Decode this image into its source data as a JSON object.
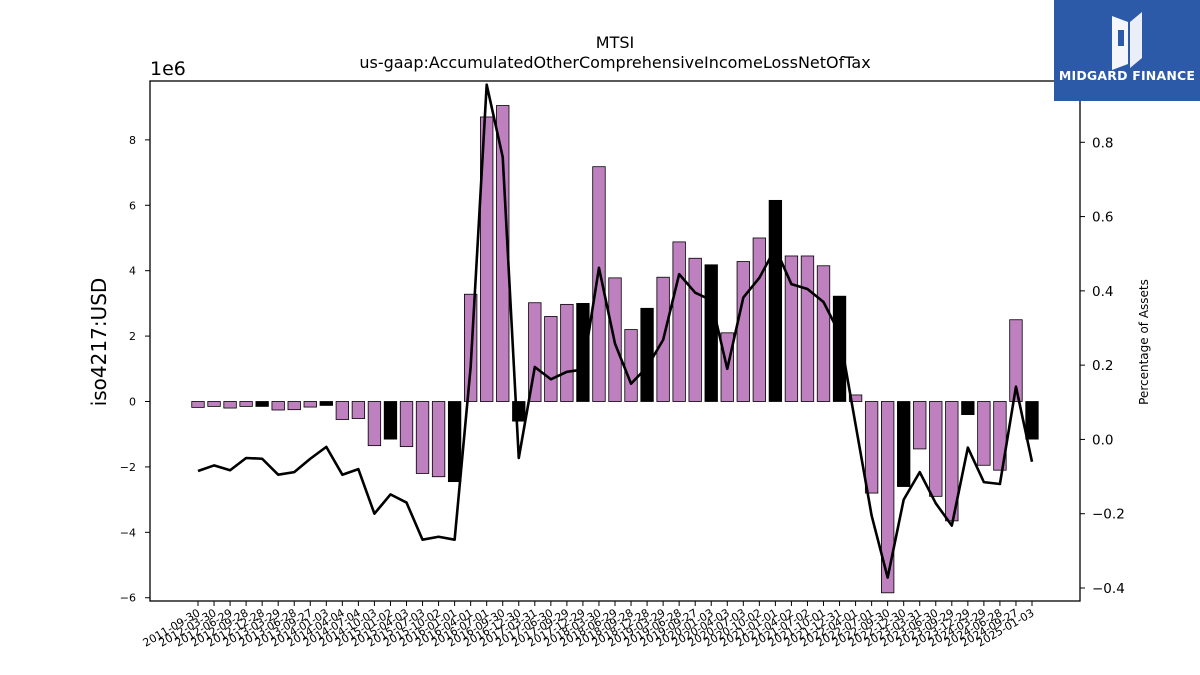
{
  "chart_data": {
    "type": "bar",
    "title": "MTSI",
    "subtitle": "us-gaap:AccumulatedOtherComprehensiveIncomeLossNetOfTax",
    "ylabel": "iso4217:USD",
    "y2label": "Percentage of Assets",
    "y_multiplier": "1e6",
    "ylim": [
      -6.1,
      9.8
    ],
    "y2lim": [
      -0.435,
      0.965
    ],
    "yticks": [
      -6,
      -4,
      -2,
      0,
      2,
      4,
      6,
      8
    ],
    "y2ticks": [
      -0.4,
      -0.2,
      0.0,
      0.2,
      0.4,
      0.6,
      0.8
    ],
    "y2ticklabels": [
      "−0.4",
      "−0.2",
      "0.0",
      "0.2",
      "0.4",
      "0.6",
      "0.8"
    ],
    "yticklabels": [
      "−6",
      "−4",
      "−2",
      "0",
      "2",
      "4",
      "6",
      "8"
    ],
    "legend": "none",
    "grid": false,
    "colors": {
      "bar": "#bf80bf",
      "bar_highlight": "#000000",
      "line": "#000000"
    },
    "x": [
      "2011-09-30",
      "2012-03-30",
      "2012-06-29",
      "2012-09-28",
      "2012-12-28",
      "2013-03-29",
      "2013-06-28",
      "2013-09-27",
      "2014-01-03",
      "2014-04-04",
      "2014-07-04",
      "2014-10-03",
      "2015-01-02",
      "2015-04-03",
      "2015-07-03",
      "2015-10-02",
      "2016-01-01",
      "2016-04-01",
      "2016-07-01",
      "2016-09-30",
      "2016-12-30",
      "2017-03-31",
      "2017-06-30",
      "2017-09-29",
      "2017-12-29",
      "2018-03-30",
      "2018-06-29",
      "2018-09-28",
      "2018-12-28",
      "2019-03-29",
      "2019-06-28",
      "2019-09-27",
      "2020-01-03",
      "2020-04-03",
      "2020-07-03",
      "2020-10-02",
      "2021-01-01",
      "2021-04-02",
      "2021-07-02",
      "2021-10-01",
      "2021-12-31",
      "2022-04-01",
      "2022-07-01",
      "2022-09-30",
      "2022-12-30",
      "2023-03-31",
      "2023-06-30",
      "2023-09-29",
      "2023-12-29",
      "2024-03-29",
      "2024-06-28",
      "2024-09-27",
      "2025-01-03"
    ],
    "values": [
      -0.18,
      -0.15,
      -0.2,
      -0.15,
      -0.15,
      -0.26,
      -0.25,
      -0.17,
      -0.12,
      -0.55,
      -0.52,
      -1.35,
      -1.15,
      -1.38,
      -2.2,
      -2.3,
      -2.45,
      3.28,
      8.7,
      9.05,
      -0.6,
      3.02,
      2.6,
      2.97,
      3.0,
      7.18,
      3.78,
      2.2,
      2.85,
      3.8,
      4.88,
      4.38,
      4.18,
      2.1,
      4.28,
      5.0,
      6.15,
      4.45,
      4.45,
      4.15,
      3.22,
      0.2,
      -2.8,
      -5.85,
      -2.6,
      -1.45,
      -2.9,
      -3.65,
      -0.4,
      -1.95,
      -2.1,
      2.5,
      -1.15
    ],
    "highlight": [
      false,
      false,
      false,
      false,
      true,
      false,
      false,
      false,
      true,
      false,
      false,
      false,
      true,
      false,
      false,
      false,
      true,
      false,
      false,
      false,
      true,
      false,
      false,
      false,
      true,
      false,
      false,
      false,
      true,
      false,
      false,
      false,
      true,
      false,
      false,
      false,
      true,
      false,
      false,
      false,
      true,
      false,
      false,
      false,
      true,
      false,
      false,
      false,
      true,
      false,
      false,
      false,
      true
    ],
    "pct_of_assets": [
      -0.085,
      -0.07,
      -0.083,
      -0.05,
      -0.052,
      -0.095,
      -0.088,
      -0.052,
      -0.02,
      -0.095,
      -0.08,
      -0.2,
      -0.148,
      -0.17,
      -0.27,
      -0.262,
      -0.27,
      0.195,
      0.955,
      0.76,
      -0.05,
      0.195,
      0.162,
      0.182,
      0.188,
      0.462,
      0.258,
      0.15,
      0.195,
      0.268,
      0.445,
      0.395,
      0.375,
      0.19,
      0.382,
      0.435,
      0.515,
      0.418,
      0.405,
      0.37,
      0.285,
      0.04,
      -0.205,
      -0.372,
      -0.162,
      -0.088,
      -0.172,
      -0.232,
      -0.022,
      -0.115,
      -0.12,
      0.142,
      -0.06
    ]
  },
  "logo": {
    "name": "midgard-finance-logo",
    "text": "MIDGARD FINANCE"
  }
}
